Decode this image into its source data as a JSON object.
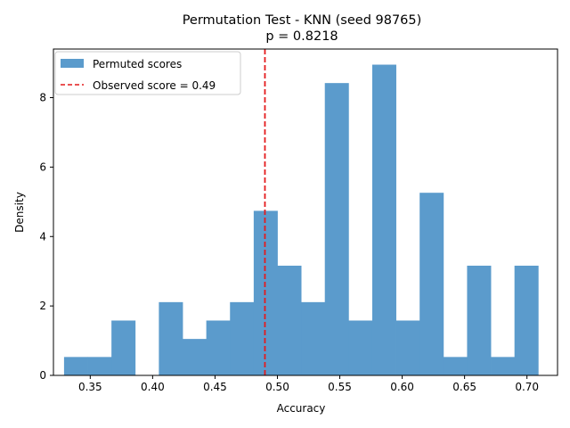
{
  "chart_data": {
    "type": "histogram",
    "title": "Permutation Test - KNN (seed 98765)",
    "subtitle": "p = 0.8218",
    "xlabel": "Accuracy",
    "ylabel": "Density",
    "xlim": [
      0.3205,
      0.7245
    ],
    "ylim": [
      0,
      9.4
    ],
    "x_ticks": [
      0.35,
      0.4,
      0.45,
      0.5,
      0.55,
      0.6,
      0.65,
      0.7
    ],
    "x_tick_labels": [
      "0.35",
      "0.40",
      "0.45",
      "0.50",
      "0.55",
      "0.60",
      "0.65",
      "0.70"
    ],
    "y_ticks": [
      0,
      2,
      4,
      6,
      8
    ],
    "y_tick_labels": [
      "0",
      "2",
      "4",
      "6",
      "8"
    ],
    "grid": false,
    "legend_position": "upper-left",
    "series": [
      {
        "name": "Permuted scores",
        "kind": "histogram",
        "color": "#5b9bcc",
        "bin_edges": [
          0.329,
          0.348,
          0.367,
          0.386,
          0.405,
          0.424,
          0.443,
          0.462,
          0.481,
          0.5,
          0.519,
          0.538,
          0.557,
          0.576,
          0.595,
          0.614,
          0.633,
          0.652,
          0.671,
          0.69,
          0.709
        ],
        "values": [
          0.53,
          0.53,
          1.58,
          0,
          2.11,
          1.05,
          1.58,
          2.11,
          4.74,
          3.16,
          2.11,
          8.42,
          1.58,
          8.95,
          1.58,
          5.26,
          0.53,
          3.16,
          0.53,
          3.16
        ]
      },
      {
        "name": "Observed score = 0.49",
        "kind": "vline",
        "color": "#e41a1c",
        "linestyle": "dashed",
        "x": 0.49
      }
    ]
  }
}
